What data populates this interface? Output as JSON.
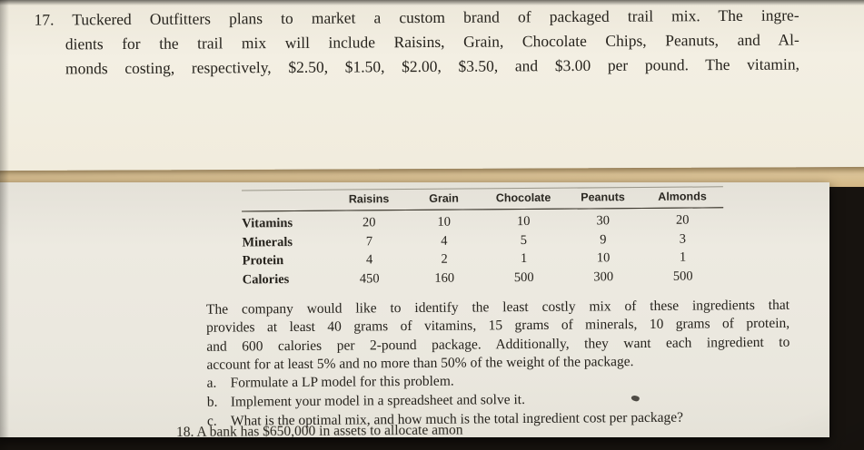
{
  "colors": {
    "background": "#17130f",
    "top_paper": "#f1ecdd",
    "bottom_paper": "#eae7de",
    "page_edge_band": "#d8c094",
    "text": "#26231d"
  },
  "problem_17": {
    "lines": [
      "17. Tuckered Outfitters plans to market a custom brand of packaged trail mix. The ingre-",
      "dients for the trail mix will include Raisins, Grain, Chocolate Chips, Peanuts, and Al-",
      "monds costing, respectively, $2.50, $1.50, $2.00, $3.50, and $3.00 per pound. The vitamin,"
    ]
  },
  "table": {
    "columns": [
      "Raisins",
      "Grain",
      "Chocolate",
      "Peanuts",
      "Almonds"
    ],
    "rows": [
      {
        "label": "Vitamins",
        "values": [
          "20",
          "10",
          "10",
          "30",
          "20"
        ]
      },
      {
        "label": "Minerals",
        "values": [
          "7",
          "4",
          "5",
          "9",
          "3"
        ]
      },
      {
        "label": "Protein",
        "values": [
          "4",
          "2",
          "1",
          "10",
          "1"
        ]
      },
      {
        "label": "Calories",
        "values": [
          "450",
          "160",
          "500",
          "300",
          "500"
        ]
      }
    ]
  },
  "problem_17_body": {
    "lines": [
      "The company would like to identify the least costly mix of these ingredients that",
      "provides at least 40 grams of vitamins, 15 grams of minerals, 10 grams of protein,",
      "and 600 calories per 2-pound package. Additionally, they want each ingredient to",
      "account for at least 5% and no more than 50% of the weight of the package."
    ],
    "items": [
      {
        "marker": "a.",
        "text": "Formulate a LP model for this problem."
      },
      {
        "marker": "b.",
        "text": "Implement your model in a spreadsheet and solve it."
      },
      {
        "marker": "c.",
        "text": "What is the optimal mix, and how much is the total ingredient cost per package?"
      }
    ]
  },
  "problem_18": {
    "visible_text": "18. A bank has $650,000 in assets to allocate amon"
  }
}
